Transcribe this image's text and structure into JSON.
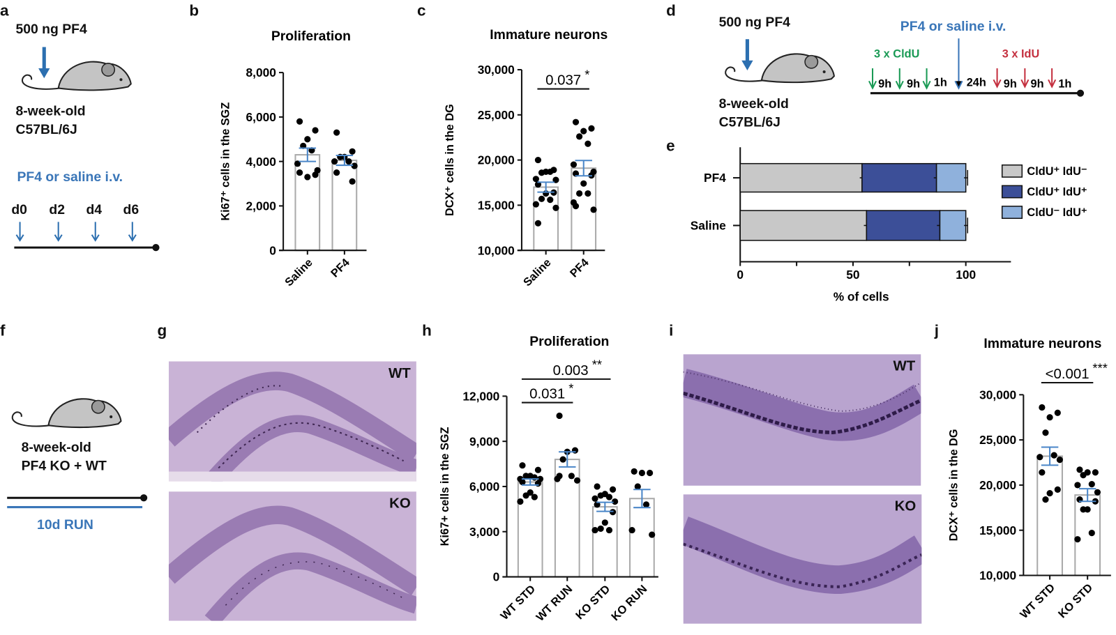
{
  "panel_labels": {
    "a": "a",
    "b": "b",
    "c": "c",
    "d": "d",
    "e": "e",
    "f": "f",
    "g": "g",
    "h": "h",
    "i": "i",
    "j": "j"
  },
  "panel_a": {
    "dose": "500 ng  PF4",
    "mouse_line1": "8-week-old",
    "mouse_line2": "C57BL/6J",
    "treatment": "PF4 or saline i.v.",
    "days": [
      "d0",
      "d2",
      "d4",
      "d6"
    ]
  },
  "panel_d": {
    "dose": "500 ng  PF4",
    "mouse_line1": "8-week-old",
    "mouse_line2": "C57BL/6J",
    "treatment": "PF4 or saline i.v.",
    "cldu_label": "3 x CldU",
    "idu_label": "3 x IdU",
    "intervals": [
      "9h",
      "9h",
      "1h",
      "24h",
      "9h",
      "9h",
      "1h"
    ]
  },
  "panel_f": {
    "mouse_line1": "8-week-old",
    "mouse_line2": "PF4 KO + WT",
    "run_label": "10d RUN"
  },
  "panel_g": {
    "top_tag": "WT",
    "bottom_tag": "KO"
  },
  "panel_i": {
    "top_tag": "WT",
    "bottom_tag": "KO"
  },
  "colors": {
    "accent_blue": "#3a76b8",
    "cldu_green": "#1a9a55",
    "idu_red": "#c4303f",
    "sem_blue": "#4a86c8",
    "bar_edge": "#aaaaaa",
    "seg_gray": "#c8c8c8",
    "seg_dark_blue": "#3c4f98",
    "seg_light_blue": "#8fb1dc",
    "histology_purple": "#c9b3d6"
  },
  "chart_data": [
    {
      "id": "b",
      "type": "bar",
      "title": "Proliferation",
      "ylabel": "Ki67⁺ cells in the SGZ",
      "categories": [
        "Saline",
        "PF4"
      ],
      "ylim": [
        0,
        8000
      ],
      "yticks": [
        0,
        2000,
        4000,
        6000,
        8000
      ],
      "ytick_labels": [
        "0",
        "2,000",
        "4,000",
        "6,000",
        "8,000"
      ],
      "means": [
        4300,
        4050
      ],
      "sem": [
        300,
        220
      ],
      "points": [
        [
          5800,
          5400,
          5000,
          4700,
          4500,
          3900,
          3600,
          3500,
          3400,
          3300
        ],
        [
          5300,
          4450,
          4200,
          4200,
          4000,
          4000,
          3800,
          3500,
          3100
        ]
      ],
      "comparisons": []
    },
    {
      "id": "c",
      "type": "bar",
      "title": "Immature neurons",
      "ylabel": "DCX⁺ cells in the DG",
      "categories": [
        "Saline",
        "PF4"
      ],
      "ylim": [
        10000,
        30000
      ],
      "yticks": [
        10000,
        15000,
        20000,
        25000,
        30000
      ],
      "ytick_labels": [
        "10,000",
        "15,000",
        "20,000",
        "25,000",
        "30,000"
      ],
      "means": [
        17000,
        19100
      ],
      "sem": [
        550,
        850
      ],
      "points": [
        [
          20000,
          18900,
          18700,
          18600,
          18700,
          17900,
          17800,
          17300,
          16400,
          16300,
          15700,
          15600,
          15100,
          14700,
          13000
        ],
        [
          24200,
          23500,
          23200,
          22600,
          21800,
          19500,
          18700,
          18500,
          18300,
          17400,
          16300,
          16300,
          15300,
          14500,
          14900
        ]
      ],
      "comparisons": [
        {
          "from": 0,
          "to": 1,
          "p": "0.037",
          "stars": "*"
        }
      ]
    },
    {
      "id": "e",
      "type": "stacked-bar-horizontal",
      "xlabel": "% of cells",
      "categories": [
        "PF4",
        "Saline"
      ],
      "xlim": [
        0,
        120
      ],
      "xticks": [
        0,
        25,
        50,
        75,
        100
      ],
      "xtick_labels": [
        "0",
        "",
        "50",
        "",
        "100"
      ],
      "legend_position": "right",
      "series": [
        {
          "name": "CldU⁺ IdU⁻",
          "values": [
            54,
            56
          ],
          "sem": [
            1,
            1.2
          ]
        },
        {
          "name": "CldU⁺ IdU⁺",
          "values": [
            33,
            32.5
          ],
          "sem": [
            1.2,
            1.3
          ]
        },
        {
          "name": "CldU⁻ IdU⁺",
          "values": [
            13,
            11.5
          ],
          "sem": [
            0.8,
            0.8
          ]
        }
      ]
    },
    {
      "id": "h",
      "type": "bar",
      "title": "Proliferation",
      "ylabel": "Ki67+ cells in the SGZ",
      "categories": [
        "WT STD",
        "WT RUN",
        "KO STD",
        "KO RUN"
      ],
      "ylim": [
        0,
        12000
      ],
      "yticks": [
        0,
        3000,
        6000,
        9000,
        12000
      ],
      "ytick_labels": [
        "0",
        "3,000",
        "6,000",
        "9,000",
        "12,000"
      ],
      "means": [
        6300,
        7800,
        4650,
        5200
      ],
      "sem": [
        200,
        500,
        300,
        600
      ],
      "points": [
        [
          7400,
          7100,
          6700,
          6700,
          6600,
          6500,
          6500,
          6300,
          6200,
          5600,
          5400,
          5300,
          5000
        ],
        [
          10700,
          8400,
          8300,
          7800,
          6700,
          6500,
          6400,
          6700
        ],
        [
          6000,
          5800,
          5500,
          5400,
          5300,
          5200,
          5000,
          4800,
          4300,
          3600,
          3200,
          3100,
          3100
        ],
        [
          7000,
          6900,
          6900,
          6000,
          4800,
          3100,
          2800
        ]
      ],
      "comparisons": [
        {
          "from": 0,
          "to": 1,
          "p": "0.031",
          "stars": "*"
        },
        {
          "from": 0,
          "to": 2,
          "p": "0.003",
          "stars": "**"
        }
      ]
    },
    {
      "id": "j",
      "type": "bar",
      "title": "Immature neurons",
      "ylabel": "DCX⁺ cells in the DG",
      "categories": [
        "WT STD",
        "KO STD"
      ],
      "ylim": [
        10000,
        30000
      ],
      "yticks": [
        10000,
        15000,
        20000,
        25000,
        30000
      ],
      "ytick_labels": [
        "10,000",
        "15,000",
        "20,000",
        "25,000",
        "30,000"
      ],
      "means": [
        23200,
        18900
      ],
      "sem": [
        1000,
        700
      ],
      "points": [
        [
          28600,
          28000,
          27500,
          25800,
          23300,
          23100,
          22800,
          21400,
          19500,
          19100,
          18400
        ],
        [
          21700,
          21400,
          21400,
          21100,
          20100,
          20000,
          19200,
          18400,
          18200,
          17300,
          17300,
          14700,
          14000
        ]
      ],
      "comparisons": [
        {
          "from": 0,
          "to": 1,
          "p": "<0.001",
          "stars": "***"
        }
      ]
    }
  ]
}
